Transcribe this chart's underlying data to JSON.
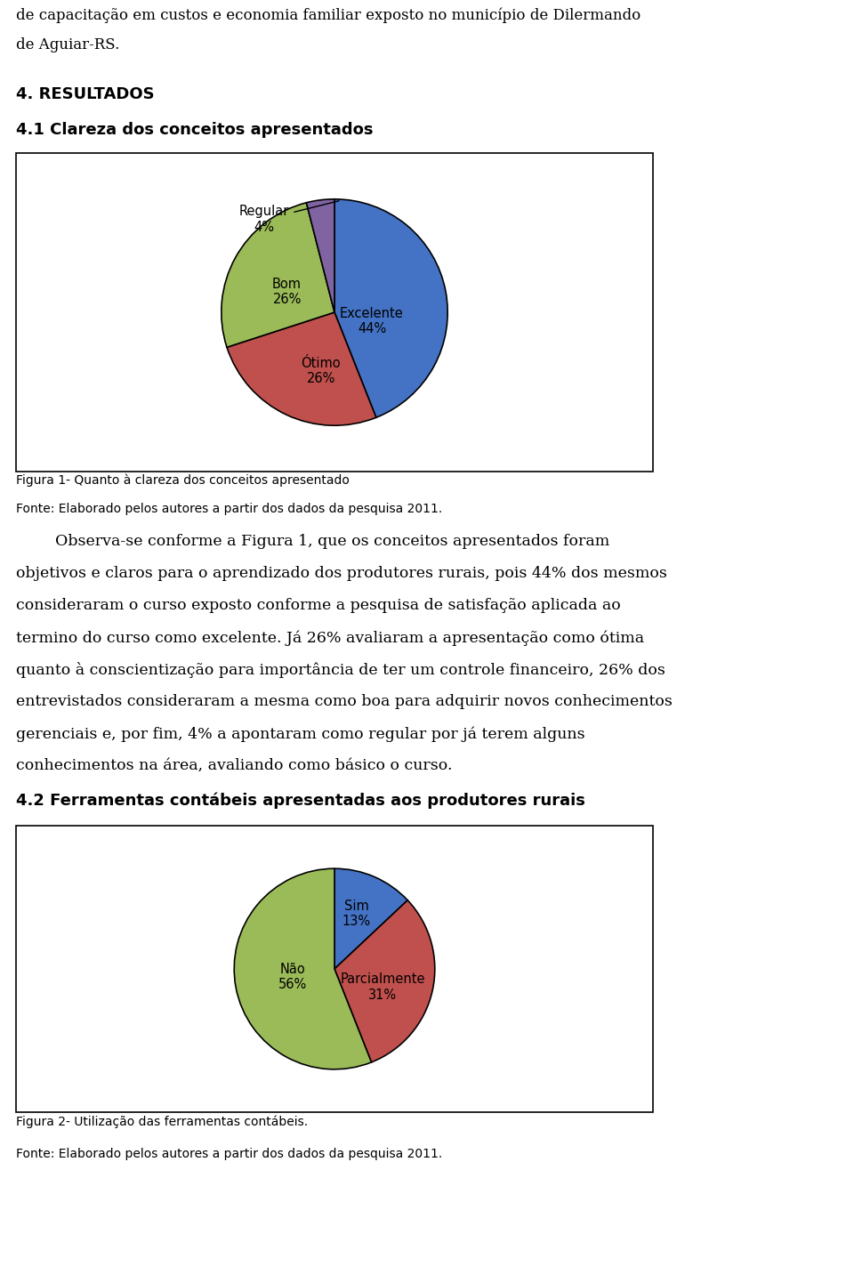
{
  "page_width": 9.6,
  "page_height": 14.42,
  "bg_color": "#ffffff",
  "top_text_lines": [
    "de capacitação em custos e economia familiar exposto no município de Dilermando",
    "de Aguiar-RS."
  ],
  "section_title": "4. RESULTADOS",
  "subsection1_title": "4.1 Clareza dos conceitos apresentados",
  "pie1_labels": [
    "Excelente",
    "Ótimo",
    "Bom",
    "Regular"
  ],
  "pie1_values": [
    44,
    26,
    26,
    4
  ],
  "pie1_colors": [
    "#4472c4",
    "#c0504d",
    "#9bbb59",
    "#8064a2"
  ],
  "pie1_startangle": 90,
  "pie1_caption_line1": "Figura 1- Quanto à clareza dos conceitos apresentado",
  "pie1_caption_line2": "Fonte: Elaborado pelos autores a partir dos dados da pesquisa 2011.",
  "body_text": [
    "        Observa-se conforme a Figura 1, que os conceitos apresentados foram",
    "objetivos e claros para o aprendizado dos produtores rurais, pois 44% dos mesmos",
    "consideraram o curso exposto conforme a pesquisa de satisfação aplicada ao",
    "termino do curso como excelente. Já 26% avaliaram a apresentação como ótima",
    "quanto à conscientização para importância de ter um controle financeiro, 26% dos",
    "entrevistados consideraram a mesma como boa para adquirir novos conhecimentos",
    "gerenciais e, por fim, 4% a apontaram como regular por já terem alguns",
    "conhecimentos na área, avaliando como básico o curso."
  ],
  "subsection2_title": "4.2 Ferramentas contábeis apresentadas aos produtores rurais",
  "pie2_labels": [
    "Sim",
    "Parcialmente",
    "Não"
  ],
  "pie2_values": [
    13,
    31,
    56
  ],
  "pie2_colors": [
    "#4472c4",
    "#c0504d",
    "#9bbb59"
  ],
  "pie2_startangle": 90,
  "pie2_caption_line1": "Figura 2- Utilização das ferramentas contábeis.",
  "pie2_caption_line2": "Fonte: Elaborado pelos autores a partir dos dados da pesquisa 2011."
}
